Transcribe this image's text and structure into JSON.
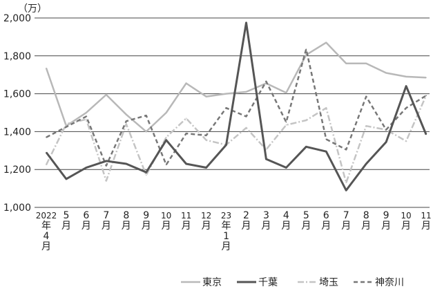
{
  "chart_data": {
    "type": "line",
    "unit_label": "（万）",
    "ylim": [
      1000,
      2000
    ],
    "yticks": [
      1000,
      1200,
      1400,
      1600,
      1800,
      2000
    ],
    "ytick_labels": [
      "1,000",
      "1,200",
      "1,400",
      "1,600",
      "1,800",
      "2,000"
    ],
    "grid": "horizontal",
    "legend_position": "bottom-right",
    "categories": [
      "2022年4月",
      "5月",
      "6月",
      "7月",
      "8月",
      "9月",
      "10月",
      "11月",
      "12月",
      "23年1月",
      "2月",
      "3月",
      "4月",
      "5月",
      "6月",
      "7月",
      "8月",
      "9月",
      "10月",
      "11月"
    ],
    "series": [
      {
        "name": "東京",
        "color": "#b8b8b8",
        "style": "solid",
        "values": [
          1735,
          1430,
          1500,
          1595,
          1490,
          1400,
          1500,
          1655,
          1585,
          1600,
          1610,
          1655,
          1605,
          1805,
          1870,
          1760,
          1760,
          1710,
          1690,
          1685
        ]
      },
      {
        "name": "千葉",
        "color": "#555555",
        "style": "solid",
        "values": [
          1290,
          1150,
          1210,
          1245,
          1230,
          1185,
          1355,
          1230,
          1210,
          1330,
          1975,
          1255,
          1210,
          1320,
          1295,
          1090,
          1230,
          1345,
          1640,
          1385
        ]
      },
      {
        "name": "埼玉",
        "color": "#c4c4c4",
        "style": "dashdot",
        "values": [
          1225,
          1440,
          1465,
          1140,
          1440,
          1170,
          1370,
          1470,
          1355,
          1330,
          1420,
          1305,
          1435,
          1460,
          1525,
          1130,
          1430,
          1410,
          1350,
          1590
        ]
      },
      {
        "name": "神奈川",
        "color": "#777777",
        "style": "dashed",
        "values": [
          1370,
          1425,
          1480,
          1220,
          1455,
          1485,
          1225,
          1390,
          1380,
          1525,
          1480,
          1665,
          1450,
          1835,
          1360,
          1305,
          1585,
          1410,
          1525,
          1590
        ]
      }
    ]
  }
}
